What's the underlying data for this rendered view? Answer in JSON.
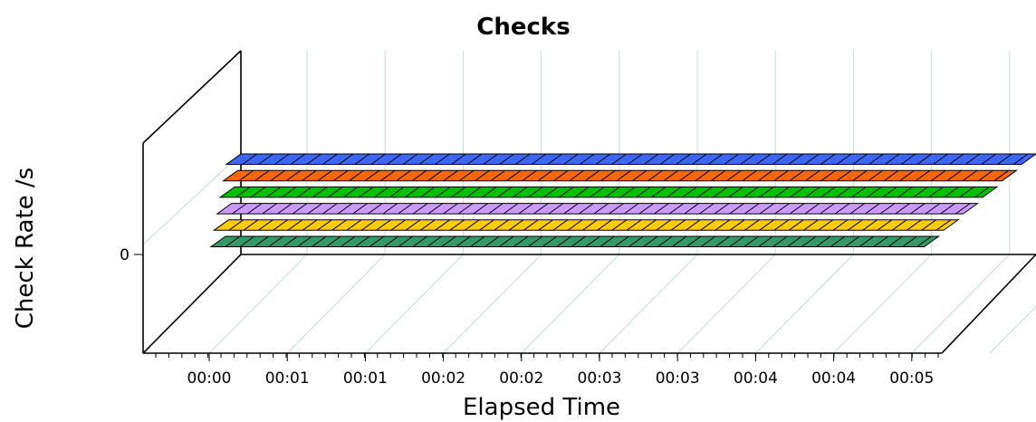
{
  "chart_data": {
    "type": "area",
    "title": "Checks",
    "xlabel": "Elapsed Time",
    "ylabel": "Check Rate /s",
    "x_ticks": [
      "00:00",
      "00:01",
      "00:01",
      "00:02",
      "00:02",
      "00:03",
      "00:03",
      "00:04",
      "00:04",
      "00:05"
    ],
    "y_ticks": [
      "0"
    ],
    "grid": true,
    "legend": "none",
    "series": [
      {
        "color": "#3d66f5",
        "values": [
          0,
          0,
          0,
          0,
          0,
          0,
          0,
          0,
          0,
          0,
          0
        ]
      },
      {
        "color": "#ff6600",
        "values": [
          0,
          0,
          0,
          0,
          0,
          0,
          0,
          0,
          0,
          0,
          0
        ]
      },
      {
        "color": "#00c000",
        "values": [
          0,
          0,
          0,
          0,
          0,
          0,
          0,
          0,
          0,
          0,
          0
        ]
      },
      {
        "color": "#cc99ff",
        "values": [
          0,
          0,
          0,
          0,
          0,
          0,
          0,
          0,
          0,
          0,
          0
        ]
      },
      {
        "color": "#ffcc00",
        "values": [
          0,
          0,
          0,
          0,
          0,
          0,
          0,
          0,
          0,
          0,
          0
        ]
      },
      {
        "color": "#339966",
        "values": [
          0,
          0,
          0,
          0,
          0,
          0,
          0,
          0,
          0,
          0,
          0
        ]
      }
    ]
  }
}
